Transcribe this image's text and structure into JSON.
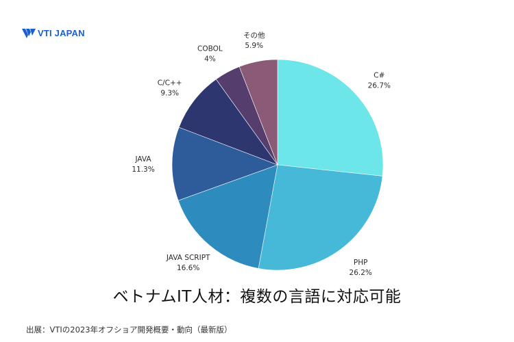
{
  "brand": {
    "logo_text": "VTI JAPAN",
    "logo_color": "#1a5fcf"
  },
  "chart_data": {
    "type": "pie",
    "title": "ベトナムIT人材：複数の言語に対応可能",
    "slices": [
      {
        "label": "C#",
        "value": 26.7,
        "value_label": "26.7%",
        "color": "#6ce6e8"
      },
      {
        "label": "PHP",
        "value": 26.2,
        "value_label": "26.2%",
        "color": "#46b8d8"
      },
      {
        "label": "JAVA SCRIPT",
        "value": 16.6,
        "value_label": "16.6%",
        "color": "#2e8bbd"
      },
      {
        "label": "JAVA",
        "value": 11.3,
        "value_label": "11.3%",
        "color": "#2e5c9a"
      },
      {
        "label": "C/C++",
        "value": 9.3,
        "value_label": "9.3%",
        "color": "#2e3670"
      },
      {
        "label": "COBOL",
        "value": 4,
        "value_label": "4%",
        "color": "#553e6e"
      },
      {
        "label": "その他",
        "value": 5.9,
        "value_label": "5.9%",
        "color": "#8a5a76"
      }
    ],
    "start": "12 o'clock",
    "direction": "clockwise"
  },
  "footer": {
    "source": "出展：VTIの2023年オフショア開発概要・動向（最新版）"
  }
}
